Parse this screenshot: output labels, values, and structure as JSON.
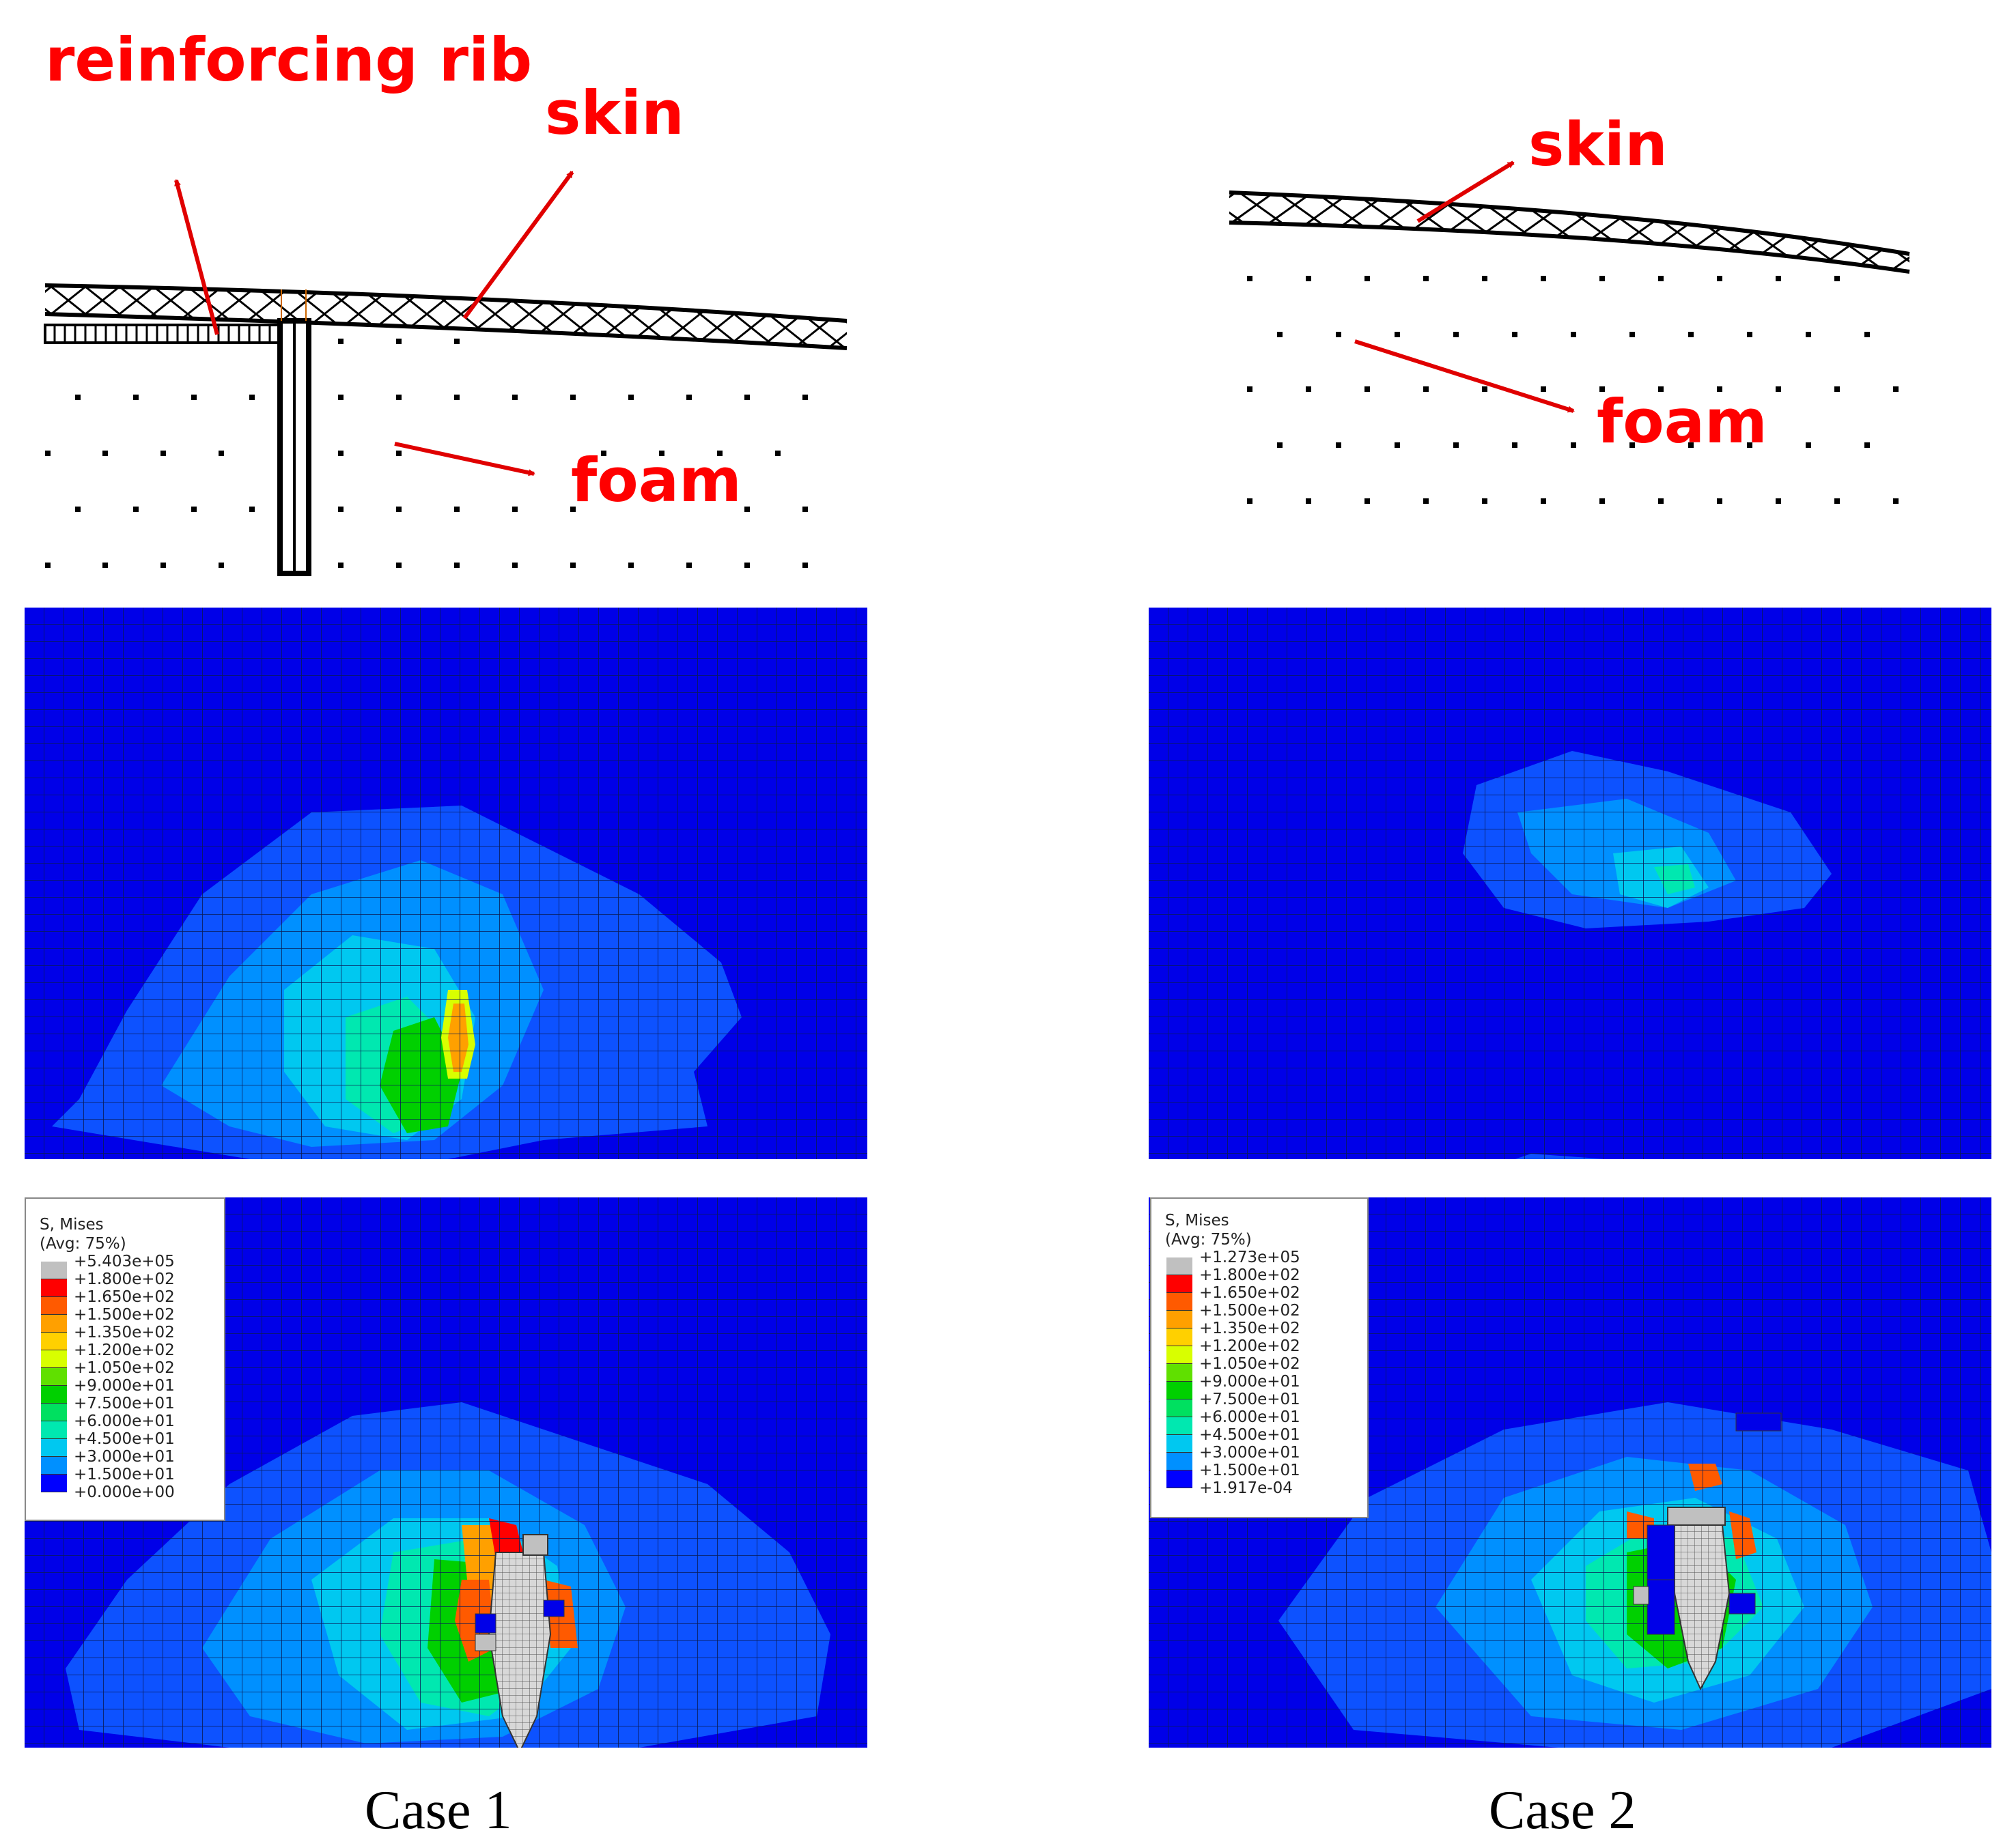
{
  "case1": {
    "sketch": {
      "labels": {
        "rib": "reinforcing rib",
        "skin": "skin",
        "foam": "foam"
      }
    },
    "legend": {
      "title1": "S, Mises",
      "title2": "(Avg: 75%)",
      "values": [
        "+5.403e+05",
        "+1.800e+02",
        "+1.650e+02",
        "+1.500e+02",
        "+1.350e+02",
        "+1.200e+02",
        "+1.050e+02",
        "+9.000e+01",
        "+7.500e+01",
        "+6.000e+01",
        "+4.500e+01",
        "+3.000e+01",
        "+1.500e+01",
        "+0.000e+00"
      ]
    },
    "caption": "Case 1"
  },
  "case2": {
    "sketch": {
      "labels": {
        "skin": "skin",
        "foam": "foam"
      }
    },
    "legend": {
      "title1": "S, Mises",
      "title2": "(Avg: 75%)",
      "values": [
        "+1.273e+05",
        "+1.800e+02",
        "+1.650e+02",
        "+1.500e+02",
        "+1.350e+02",
        "+1.200e+02",
        "+1.050e+02",
        "+9.000e+01",
        "+7.500e+01",
        "+6.000e+01",
        "+4.500e+01",
        "+3.000e+01",
        "+1.500e+01",
        "+1.917e-04"
      ]
    },
    "caption": "Case 2"
  },
  "colors": {
    "label_red": "#ff0000",
    "contour_scale": [
      "#c0c0c0",
      "#ff0000",
      "#ff5a00",
      "#ffa000",
      "#ffd000",
      "#d8ff00",
      "#60e000",
      "#00d000",
      "#00e060",
      "#00e8b0",
      "#00c8f0",
      "#0090ff",
      "#0050ff",
      "#0000ff"
    ]
  }
}
